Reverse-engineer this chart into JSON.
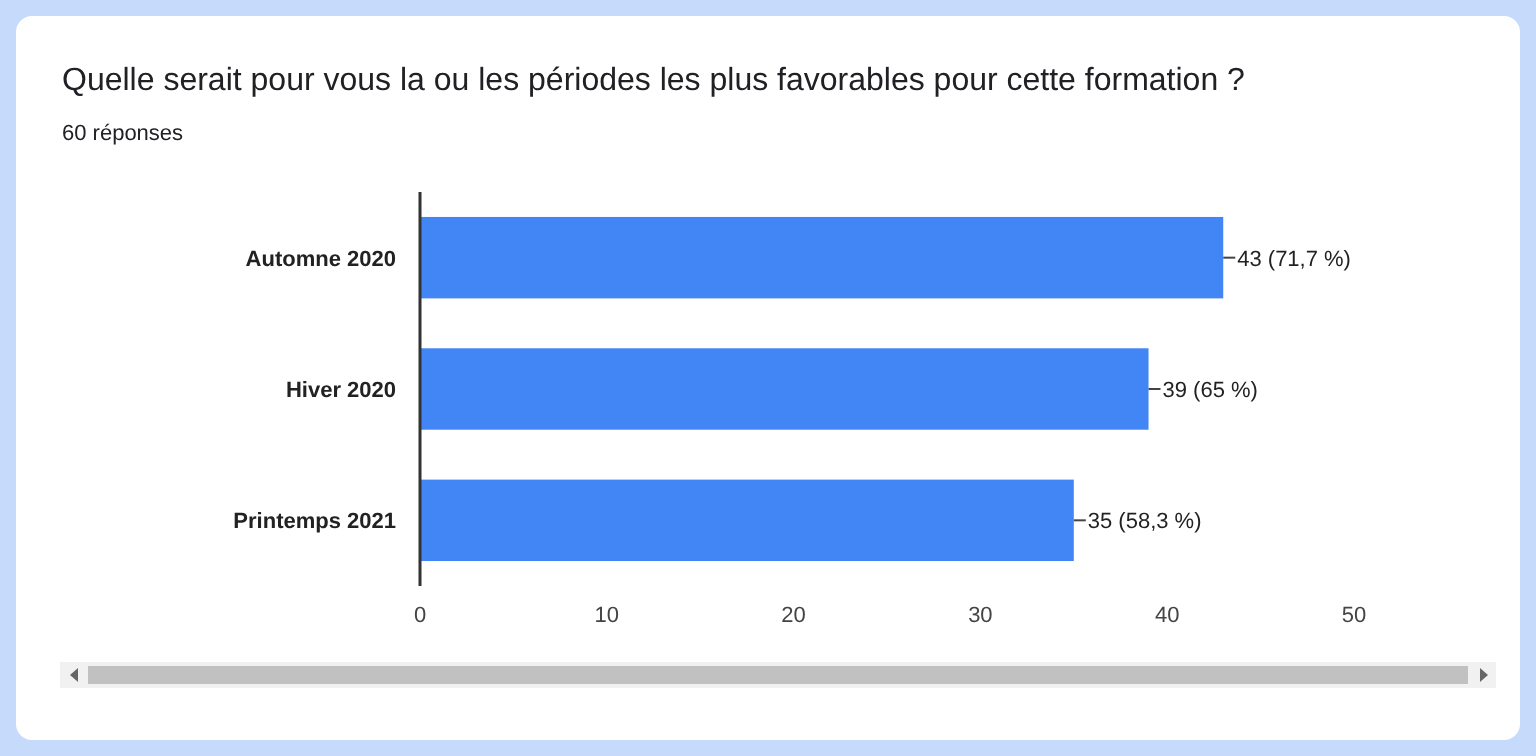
{
  "chart_data": {
    "type": "bar",
    "orientation": "horizontal",
    "title": "Quelle serait pour vous la ou les périodes les plus favorables pour cette formation ?",
    "subtitle": "60 réponses",
    "categories": [
      "Automne 2020",
      "Hiver 2020",
      "Printemps 2021"
    ],
    "values": [
      43,
      39,
      35
    ],
    "value_labels": [
      "43 (71,7 %)",
      "39 (65 %)",
      "35 (58,3 %)"
    ],
    "color": "#4285f4",
    "xlim": [
      0,
      50
    ],
    "xticks": [
      0,
      10,
      20,
      30,
      40,
      50
    ],
    "grid": false
  }
}
